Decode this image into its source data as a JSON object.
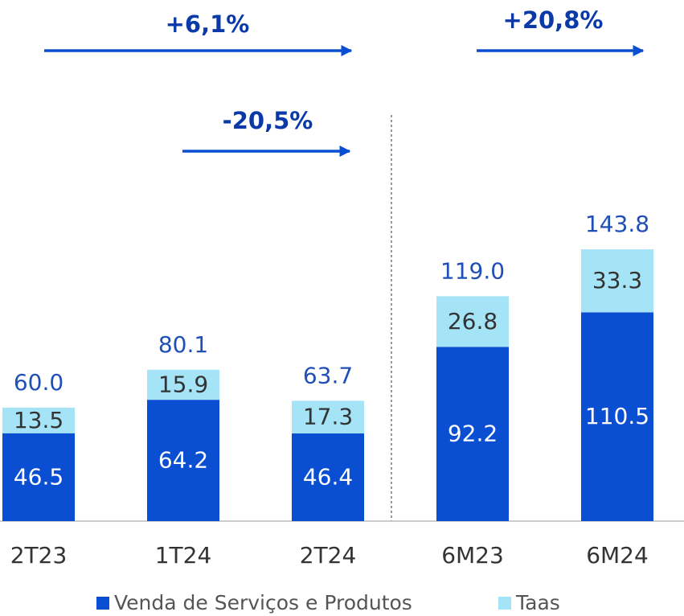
{
  "chart_data": {
    "type": "stacked_bar",
    "categories": [
      "2T23",
      "1T24",
      "2T24",
      "6M23",
      "6M24"
    ],
    "series": [
      {
        "name": "Venda de Serviços e Produtos",
        "color": "#0a4fd2",
        "values": [
          46.5,
          64.2,
          46.4,
          92.2,
          110.5
        ]
      },
      {
        "name": "Taas",
        "color": "#a5e3f7",
        "values": [
          13.5,
          15.9,
          17.3,
          26.8,
          33.3
        ]
      }
    ],
    "totals": {
      "values": [
        60,
        80.1,
        63.7,
        119,
        143.8
      ],
      "value_labels": [
        "60.0",
        "80.1",
        "63.7",
        "119.0",
        "143.8"
      ]
    },
    "annotations": [
      "+6,1%",
      "-20,5%",
      "+20,8%"
    ]
  }
}
